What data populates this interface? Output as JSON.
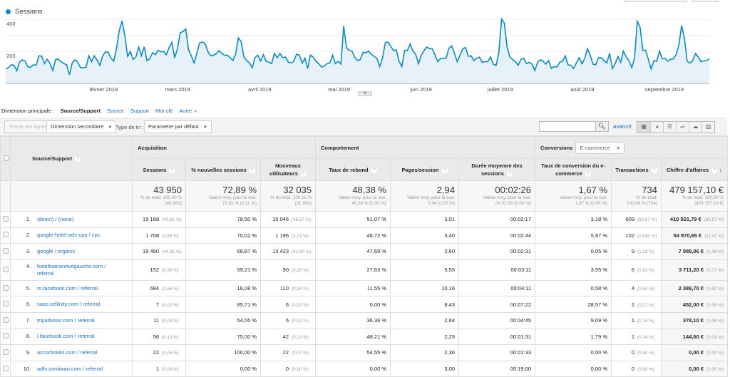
{
  "chart_data": {
    "type": "area",
    "series": [
      {
        "name": "Sessions",
        "color": "#058dc7",
        "values": [
          90,
          98,
          117,
          113,
          79,
          132,
          147,
          139,
          102,
          101,
          117,
          113,
          172,
          170,
          124,
          150,
          124,
          80,
          150,
          150,
          135,
          124,
          117,
          53,
          127,
          147,
          132,
          98,
          98,
          101,
          172,
          135,
          172,
          145,
          113,
          172,
          197,
          194,
          157,
          139,
          216,
          330,
          390,
          298,
          169,
          199,
          150,
          164,
          227,
          172,
          228,
          142,
          153,
          191,
          179,
          206,
          197,
          199,
          179,
          224,
          256,
          160,
          216,
          316,
          323,
          339,
          209,
          172,
          127,
          187,
          253,
          258,
          246,
          197,
          172,
          176,
          184,
          204,
          187,
          175,
          176,
          160,
          142,
          182,
          283,
          261,
          164,
          142,
          127,
          98,
          161,
          176,
          139,
          179,
          138,
          132,
          123,
          187,
          160,
          187,
          160,
          164,
          132,
          127,
          138,
          182,
          176,
          127,
          157,
          93,
          176,
          164,
          138,
          123,
          102,
          108,
          123,
          127,
          176,
          123,
          138,
          120,
          357,
          224,
          206,
          201,
          164,
          142,
          150,
          194,
          191,
          201,
          182,
          169,
          157,
          105,
          157,
          253,
          258,
          231,
          204,
          209,
          138,
          105,
          206,
          204,
          246,
          201,
          182,
          123,
          176,
          204,
          227,
          216,
          216,
          176,
          135,
          157,
          154,
          157,
          219,
          234,
          187,
          135,
          176,
          216,
          224,
          169,
          172,
          142,
          157,
          164,
          132,
          135,
          135,
          164,
          120,
          111,
          191,
          401,
          376,
          227,
          164,
          150,
          135,
          113,
          150,
          157,
          123,
          132,
          120,
          80,
          132,
          147,
          138,
          120,
          142,
          93,
          105,
          102,
          132,
          138,
          172,
          116,
          113,
          93,
          127,
          160,
          123,
          153,
          216,
          176,
          120,
          117,
          160,
          161,
          142,
          127,
          187,
          93,
          123,
          167,
          132,
          201,
          164,
          142,
          98,
          157,
          387,
          350,
          206,
          206,
          150,
          90,
          142,
          138,
          201,
          153,
          157,
          138,
          150,
          153,
          179,
          239,
          360,
          283,
          138,
          127,
          142,
          187,
          164,
          135,
          141,
          142,
          153
        ]
      }
    ],
    "x_range": [
      "2019-01-01",
      "2019-09-24"
    ],
    "x_tick_labels": [
      "février 2019",
      "mars 2019",
      "avril 2019",
      "mai 2019",
      "juin 2019",
      "juillet 2019",
      "août 2019",
      "septembre 2019"
    ],
    "y_tick_labels": [
      "400",
      "200"
    ],
    "ylim": [
      0,
      400
    ],
    "grid": true,
    "legend": "top-left"
  },
  "dimension": {
    "label": "Dimension principale :",
    "current": "Source/Support",
    "options": [
      "Source",
      "Support",
      "Mot clé"
    ],
    "other": "Autre"
  },
  "toolbar": {
    "plot_rows": "Tracer les lignes",
    "secondary_dimension": "Dimension secondaire",
    "sort_label": "Type de tri :",
    "sort_value": "Paramètre par défaut",
    "search_value": "",
    "advanced": "avancé"
  },
  "table": {
    "dim_header": "Source/Support",
    "groups": {
      "acquisition": "Acquisition",
      "behavior": "Comportement",
      "conversions": "Conversions",
      "conversion_select": "E-commerce"
    },
    "columns": [
      "Sessions",
      "% nouvelles sessions",
      "Nouveaux utilisateurs",
      "Taux de rebond",
      "Pages/session",
      "Durée moyenne des sessions",
      "Taux de conversion du e-commerce",
      "Transactions",
      "Chiffre d'affaires"
    ],
    "totals": [
      {
        "value": "43 950",
        "sub": "% du total: 100,00 %\n(43 950)"
      },
      {
        "value": "72,89 %",
        "sub": "Valeur moy. pour la vue:\n72,81 % (0,11 %)"
      },
      {
        "value": "32 035",
        "sub": "% du total: 100,11 %\n(31 999)"
      },
      {
        "value": "48,38 %",
        "sub": "Valeur moy. pour la vue:\n48,38 % (0,00 %)"
      },
      {
        "value": "2,94",
        "sub": "Valeur moy. pour la vue:\n2,94 (0,00 %)"
      },
      {
        "value": "00:02:26",
        "sub": "Valeur moy. pour la vue:\n00:02:26 (0,00 %)"
      },
      {
        "value": "1,67 %",
        "sub": "Valeur moy. pour la vue:\n1,67 % (0,00 %)"
      },
      {
        "value": "734",
        "sub": "% du total:\n100,00 % (734)"
      },
      {
        "value": "479 157,10 €",
        "sub": "% du total: 100,00 %\n(479 157,10 €)"
      }
    ],
    "rows": [
      {
        "n": "1.",
        "src": "(direct) / (none)",
        "sessions": "19 168",
        "sessions_pct": "(43,61 %)",
        "new_pct": "78,50 %",
        "new_users": "15 046",
        "new_users_pct": "(46,97 %)",
        "bounce": "51,07 %",
        "pages": "3,01",
        "duration": "00:02:17",
        "conv": "3,18 %",
        "trans": "609",
        "trans_pct": "(82,97 %)",
        "rev": "410 021,79 €",
        "rev_pct": "(85,57 %)"
      },
      {
        "n": "2.",
        "src": "google-hotel-ads-cpa / cpc",
        "sessions": "1 708",
        "sessions_pct": "(3,89 %)",
        "new_pct": "70,02 %",
        "new_users": "1 196",
        "new_users_pct": "(3,73 %)",
        "bounce": "46,72 %",
        "pages": "3,40",
        "duration": "00:02:44",
        "conv": "5,97 %",
        "trans": "102",
        "trans_pct": "(13,90 %)",
        "rev": "54 970,65 €",
        "rev_pct": "(11,47 %)"
      },
      {
        "n": "3.",
        "src": "google / organic",
        "sessions": "19 490",
        "sessions_pct": "(44,35 %)",
        "new_pct": "68,87 %",
        "new_users": "13 423",
        "new_users_pct": "(41,90 %)",
        "bounce": "47,69 %",
        "pages": "2,60",
        "duration": "00:02:31",
        "conv": "0,05 %",
        "trans": "9",
        "trans_pct": "(1,23 %)",
        "rev": "7 089,06 €",
        "rev_pct": "(1,48 %)"
      },
      {
        "n": "4.",
        "src": "hoteltrianonrivegauche.com / referral",
        "sessions": "152",
        "sessions_pct": "(0,35 %)",
        "new_pct": "59,21 %",
        "new_users": "90",
        "new_users_pct": "(0,28 %)",
        "bounce": "27,63 %",
        "pages": "5,55",
        "duration": "00:03:11",
        "conv": "3,95 %",
        "trans": "6",
        "trans_pct": "(0,82 %)",
        "rev": "3 711,20 €",
        "rev_pct": "(0,77 %)"
      },
      {
        "n": "5.",
        "src": "m.facebook.com / referral",
        "sessions": "684",
        "sessions_pct": "(1,56 %)",
        "new_pct": "16,08 %",
        "new_users": "110",
        "new_users_pct": "(0,34 %)",
        "bounce": "11,55 %",
        "pages": "10,16",
        "duration": "00:04:11",
        "conv": "0,58 %",
        "trans": "4",
        "trans_pct": "(0,54 %)",
        "rev": "2 389,70 €",
        "rev_pct": "(0,50 %)"
      },
      {
        "n": "6.",
        "src": "saas.sellinity.com / referral",
        "sessions": "7",
        "sessions_pct": "(0,02 %)",
        "new_pct": "85,71 %",
        "new_users": "6",
        "new_users_pct": "(0,02 %)",
        "bounce": "0,00 %",
        "pages": "8,43",
        "duration": "00:07:22",
        "conv": "28,57 %",
        "trans": "2",
        "trans_pct": "(0,27 %)",
        "rev": "452,00 €",
        "rev_pct": "(0,09 %)"
      },
      {
        "n": "7.",
        "src": "tripadvisor.com / referral",
        "sessions": "11",
        "sessions_pct": "(0,03 %)",
        "new_pct": "54,55 %",
        "new_users": "6",
        "new_users_pct": "(0,02 %)",
        "bounce": "36,36 %",
        "pages": "2,64",
        "duration": "00:04:45",
        "conv": "9,09 %",
        "trans": "1",
        "trans_pct": "(0,14 %)",
        "rev": "378,10 €",
        "rev_pct": "(0,08 %)"
      },
      {
        "n": "8.",
        "src": "l.facebook.com / referral",
        "sessions": "56",
        "sessions_pct": "(0,13 %)",
        "new_pct": "75,00 %",
        "new_users": "42",
        "new_users_pct": "(0,13 %)",
        "bounce": "48,21 %",
        "pages": "2,25",
        "duration": "00:01:31",
        "conv": "1,79 %",
        "trans": "1",
        "trans_pct": "(0,14 %)",
        "rev": "144,60 €",
        "rev_pct": "(0,03 %)"
      },
      {
        "n": "9.",
        "src": "accorhotels.com / referral",
        "sessions": "22",
        "sessions_pct": "(0,05 %)",
        "new_pct": "100,00 %",
        "new_users": "22",
        "new_users_pct": "(0,07 %)",
        "bounce": "54,55 %",
        "pages": "2,36",
        "duration": "00:01:33",
        "conv": "0,00 %",
        "trans": "0",
        "trans_pct": "(0,00 %)",
        "rev": "0,00 €",
        "rev_pct": "(0,00 %)"
      },
      {
        "n": "10.",
        "src": "adfs.contiwan.com / referral",
        "sessions": "1",
        "sessions_pct": "(0,00 %)",
        "new_pct": "0,00 %",
        "new_users": "0",
        "new_users_pct": "(0,00 %)",
        "bounce": "0,00 %",
        "pages": "3,00",
        "duration": "00:19:00",
        "conv": "0,00 %",
        "trans": "0",
        "trans_pct": "(0,00 %)",
        "rev": "0,00 €",
        "rev_pct": "(0,00 %)"
      }
    ]
  }
}
